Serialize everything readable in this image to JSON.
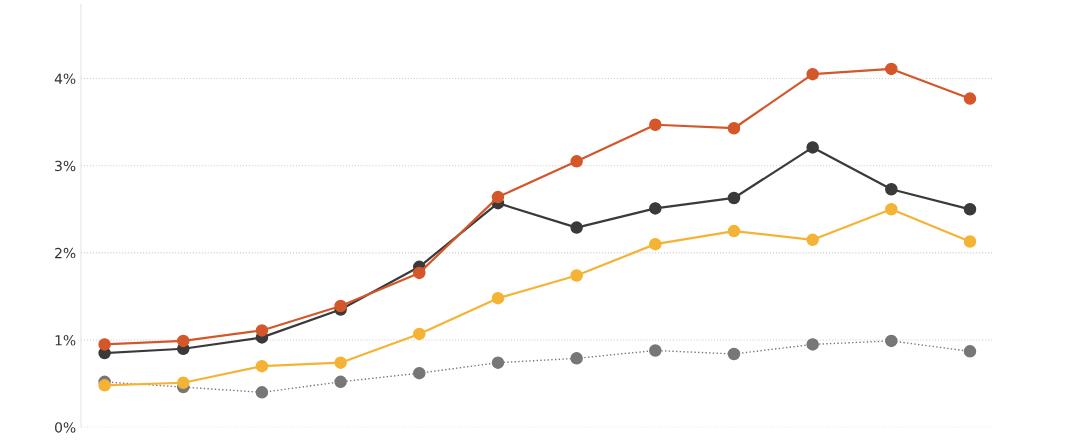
{
  "chart_data": {
    "type": "line",
    "categories": [
      null,
      null,
      null,
      null,
      null,
      null,
      null,
      null,
      null,
      null,
      null,
      null
    ],
    "series": [
      {
        "color": "#d4572a",
        "values": [
          0.95,
          0.99,
          1.11,
          1.39,
          1.77,
          2.64,
          3.05,
          3.47,
          3.43,
          4.05,
          4.11,
          3.77
        ]
      },
      {
        "color": "#3a3a3a",
        "values": [
          0.85,
          0.9,
          1.03,
          1.35,
          1.84,
          2.57,
          2.29,
          2.51,
          2.63,
          3.21,
          2.73,
          2.5
        ]
      },
      {
        "color": "#f5b335",
        "values": [
          0.48,
          0.51,
          0.7,
          0.74,
          1.07,
          1.48,
          1.74,
          2.1,
          2.25,
          2.15,
          2.5,
          2.13
        ]
      },
      {
        "color": "#777777",
        "line_style": "dotted",
        "values": [
          0.52,
          0.46,
          0.4,
          0.52,
          0.62,
          0.74,
          0.79,
          0.88,
          0.84,
          0.95,
          0.99,
          0.87
        ]
      }
    ],
    "ylim": [
      0,
      4.85
    ],
    "yticks": [
      {
        "value": 0,
        "label": "0%"
      },
      {
        "value": 1,
        "label": "1%"
      },
      {
        "value": 2,
        "label": "2%"
      },
      {
        "value": 3,
        "label": "3%"
      },
      {
        "value": 4,
        "label": "4%"
      }
    ],
    "grid": "y",
    "marker": "circle",
    "line_style": "solid",
    "tick_labels": "y"
  }
}
